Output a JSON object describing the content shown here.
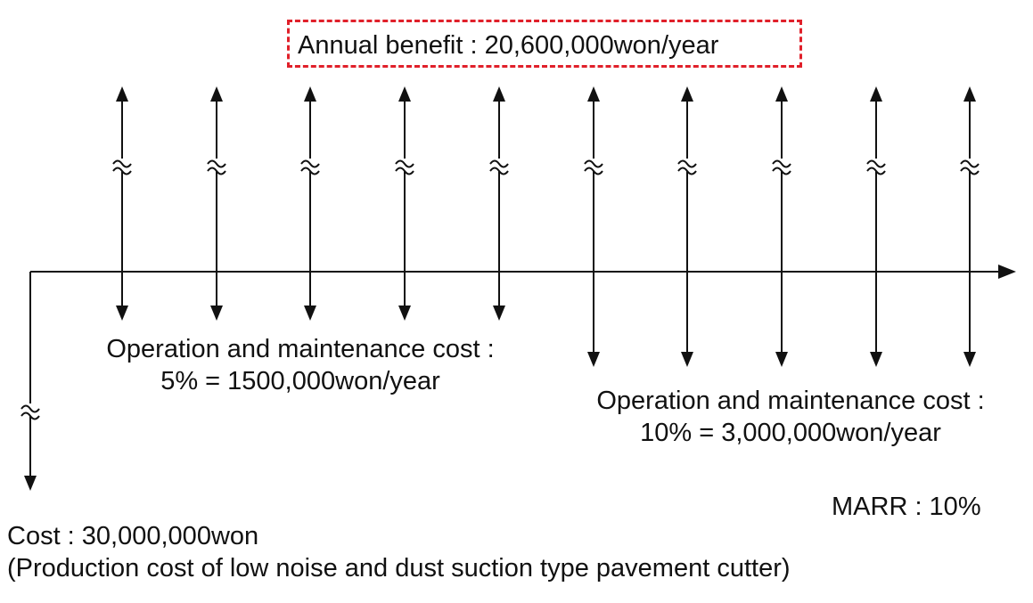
{
  "benefit": {
    "label": "Annual benefit : 20,600,000won/year"
  },
  "om_first": {
    "line1": "Operation and maintenance cost :",
    "line2": "5% = 1500,000won/year"
  },
  "om_second": {
    "line1": "Operation and maintenance cost :",
    "line2": "10% = 3,000,000won/year"
  },
  "marr": "MARR : 10%",
  "initial_cost": {
    "label": "Cost : 30,000,000won",
    "description": "(Production cost of low noise and dust suction type pavement cutter)"
  },
  "cash_flows": {
    "years": [
      1,
      2,
      3,
      4,
      5,
      6,
      7,
      8,
      9,
      10
    ],
    "maintenance_short_years": [
      1,
      2,
      3,
      4,
      5
    ],
    "maintenance_long_years": [
      6,
      7,
      8,
      9,
      10
    ]
  },
  "colors": {
    "accent_dashed_box": "#e0202a",
    "line": "#111111"
  }
}
